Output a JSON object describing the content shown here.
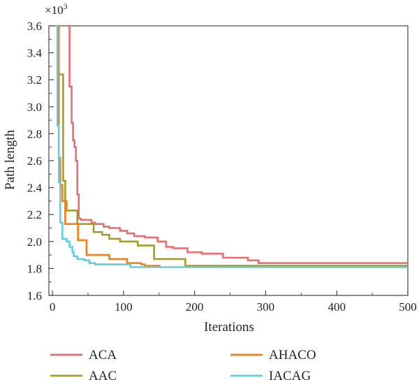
{
  "chart_data": {
    "type": "line",
    "xlabel": "Iterations",
    "ylabel": "Path length",
    "y_multiplier_label": "×10",
    "y_multiplier_exp": "3",
    "xlim": [
      -5,
      500
    ],
    "ylim": [
      1.6,
      3.6
    ],
    "xticks": [
      0,
      100,
      200,
      300,
      400,
      500
    ],
    "yticks": [
      1.6,
      1.8,
      2.0,
      2.2,
      2.4,
      2.6,
      2.8,
      3.0,
      3.2,
      3.4,
      3.6
    ],
    "ytick_labels": [
      "1.6",
      "1.8",
      "2.0",
      "2.2",
      "2.4",
      "2.6",
      "2.8",
      "3.0",
      "3.2",
      "3.4",
      "3.6"
    ],
    "xtick_labels": [
      "0",
      "100",
      "200",
      "300",
      "400",
      "500"
    ],
    "grid": false,
    "legend_position": "bottom",
    "series": [
      {
        "name": "ACA",
        "color": "#ee6b6b",
        "points": [
          [
            21,
            3.6
          ],
          [
            24,
            3.15
          ],
          [
            27,
            2.88
          ],
          [
            29,
            2.75
          ],
          [
            31,
            2.7
          ],
          [
            33,
            2.6
          ],
          [
            35,
            2.35
          ],
          [
            37,
            2.17
          ],
          [
            40,
            2.16
          ],
          [
            55,
            2.14
          ],
          [
            60,
            2.13
          ],
          [
            72,
            2.11
          ],
          [
            80,
            2.1
          ],
          [
            95,
            2.08
          ],
          [
            105,
            2.06
          ],
          [
            115,
            2.04
          ],
          [
            130,
            2.03
          ],
          [
            148,
            2.0
          ],
          [
            160,
            1.96
          ],
          [
            170,
            1.95
          ],
          [
            190,
            1.92
          ],
          [
            210,
            1.91
          ],
          [
            240,
            1.88
          ],
          [
            275,
            1.86
          ],
          [
            290,
            1.84
          ],
          [
            500,
            1.84
          ]
        ]
      },
      {
        "name": "AAC",
        "color": "#a39d2a",
        "points": [
          [
            5,
            3.6
          ],
          [
            7,
            3.24
          ],
          [
            12,
            3.24
          ],
          [
            15,
            2.45
          ],
          [
            18,
            2.3
          ],
          [
            20,
            2.23
          ],
          [
            30,
            2.23
          ],
          [
            35,
            2.13
          ],
          [
            52,
            2.13
          ],
          [
            58,
            2.07
          ],
          [
            70,
            2.05
          ],
          [
            80,
            2.02
          ],
          [
            95,
            2.0
          ],
          [
            120,
            1.97
          ],
          [
            140,
            1.97
          ],
          [
            143,
            1.87
          ],
          [
            185,
            1.87
          ],
          [
            187,
            1.82
          ],
          [
            500,
            1.82
          ]
        ]
      },
      {
        "name": "AHACO",
        "color": "#f57e1a",
        "points": [
          [
            7,
            3.6
          ],
          [
            9,
            2.62
          ],
          [
            11,
            2.42
          ],
          [
            14,
            2.3
          ],
          [
            18,
            2.13
          ],
          [
            33,
            2.13
          ],
          [
            36,
            2.01
          ],
          [
            45,
            2.01
          ],
          [
            48,
            1.9
          ],
          [
            75,
            1.9
          ],
          [
            80,
            1.87
          ],
          [
            100,
            1.87
          ],
          [
            105,
            1.84
          ],
          [
            125,
            1.83
          ],
          [
            130,
            1.82
          ],
          [
            152,
            1.82
          ]
        ]
      },
      {
        "name": "IACAG",
        "color": "#61cddd",
        "points": [
          [
            5,
            3.6
          ],
          [
            7,
            2.86
          ],
          [
            9,
            2.44
          ],
          [
            11,
            2.14
          ],
          [
            14,
            2.02
          ],
          [
            20,
            2.0
          ],
          [
            24,
            1.96
          ],
          [
            28,
            1.92
          ],
          [
            30,
            1.89
          ],
          [
            35,
            1.87
          ],
          [
            45,
            1.86
          ],
          [
            52,
            1.84
          ],
          [
            60,
            1.83
          ],
          [
            100,
            1.83
          ],
          [
            110,
            1.81
          ],
          [
            500,
            1.81
          ]
        ]
      }
    ]
  }
}
